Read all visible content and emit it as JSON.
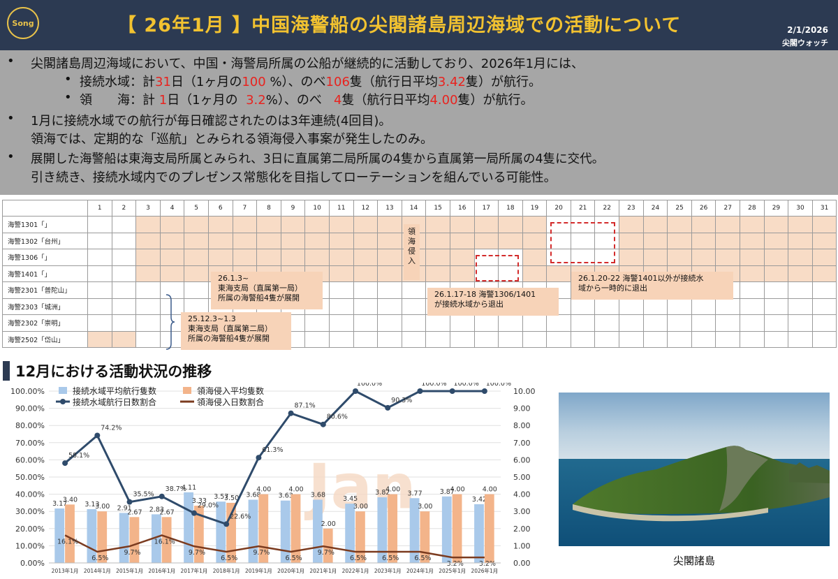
{
  "header": {
    "logo": "Song",
    "title": "【 26年1月 】中国海警船の尖閣諸島周辺海域での活動について",
    "date": "2/1/2026",
    "source": "尖閣ウォッチ"
  },
  "summary": {
    "b1": "尖閣諸島周辺海域において、中国・海警局所属の公船が継続的に活動しており、2026年1月には、",
    "s1": {
      "p1": "接続水域：計",
      "r1": "31",
      "p2": "日（1ヶ月の",
      "r2": "100 ",
      "p3": "%）、のべ",
      "r3": "106",
      "p4": "隻（航行日平均",
      "r4": "3.42",
      "p5": "隻）が航行。"
    },
    "s2": {
      "p1": "領　　海：計 ",
      "r1": "1",
      "p2": "日（1ヶ月の  ",
      "r2": "3.2",
      "p3": "%）、のべ   ",
      "r3": "4",
      "p4": "隻（航行日平均",
      "r4": "4.00",
      "p5": "隻）が航行。"
    },
    "b2": "1月に接続水域での航行が毎日確認されたのは3年連続(4回目)。",
    "b2b": "領海では、定期的な「巡航」とみられる領海侵入事案が発生したのみ。",
    "b3": "展開した海警船は東海支局所属とみられ、3日に直属第二局所属の4隻から直属第一局所属の4隻に交代。",
    "b3b": "引き続き、接続水域内でのプレゼンス常態化を目指してローテーションを組んでいる可能性。",
    "bullet": "•"
  },
  "timeline": {
    "days": [
      "1",
      "2",
      "3",
      "4",
      "5",
      "6",
      "7",
      "8",
      "9",
      "10",
      "11",
      "12",
      "13",
      "14",
      "15",
      "16",
      "17",
      "18",
      "19",
      "20",
      "21",
      "22",
      "23",
      "24",
      "25",
      "26",
      "27",
      "28",
      "29",
      "30",
      "31"
    ],
    "ships": [
      {
        "name": "海警1301「」",
        "from": 3,
        "to": 31,
        "off": [
          20,
          21,
          22
        ]
      },
      {
        "name": "海警1302「台州」",
        "from": 3,
        "to": 31,
        "off": [
          20,
          21,
          22
        ]
      },
      {
        "name": "海警1306「」",
        "from": 3,
        "to": 31,
        "off": [
          17,
          18,
          20,
          21,
          22
        ]
      },
      {
        "name": "海警1401「」",
        "from": 3,
        "to": 31,
        "off": [
          17,
          18
        ]
      },
      {
        "name": "海警2301「普陀山」",
        "from": 0,
        "to": 0,
        "off": []
      },
      {
        "name": "海警2303「城洲」",
        "from": 0,
        "to": 0,
        "off": []
      },
      {
        "name": "海警2302「崇明」",
        "from": 0,
        "to": 0,
        "off": []
      },
      {
        "name": "海警2502「岱山」",
        "from": 1,
        "to": 2,
        "off": []
      }
    ],
    "incursion": "領\n海\n侵\n入",
    "ann1": "26.1.3~\n東海支局（直属第一局）\n所属の海警船4隻が展開",
    "ann2": "25.12.3~1.3\n東海支局（直属第二局）\n所属の海警船4隻が展開",
    "ann3": "26.1.17-18 海警1306/1401\nが接続水域から退出",
    "ann4": "26.1.20-22 海警1401以外が接続水\n域から一時的に退出"
  },
  "chart_section_title": "12月における活動状況の推移",
  "chart_data": {
    "type": "bar",
    "categories": [
      "2013年1月",
      "2014年1月",
      "2015年1月",
      "2016年1月",
      "2017年1月",
      "2018年1月",
      "2019年1月",
      "2020年1月",
      "2021年1月",
      "2022年1月",
      "2023年1月",
      "2024年1月",
      "2025年1月",
      "2026年1月"
    ],
    "series": [
      {
        "name": "接続水域平均航行隻数",
        "kind": "bar",
        "axis": "right",
        "color": "#a9c9ea",
        "values": [
          3.17,
          3.13,
          2.91,
          2.83,
          4.11,
          3.57,
          3.68,
          3.63,
          3.68,
          3.45,
          3.82,
          3.77,
          3.87,
          3.42
        ],
        "labels": [
          "3.17",
          "3.13",
          "2.91",
          "2.83",
          "4.11",
          "3.57",
          "3.68",
          "3.63",
          "3.68",
          "3.45",
          "3.82",
          "3.77",
          "3.87",
          "3.42"
        ]
      },
      {
        "name": "領海侵入平均隻数",
        "kind": "bar",
        "axis": "right",
        "color": "#f3b48a",
        "values": [
          3.4,
          3.0,
          2.67,
          2.67,
          3.33,
          3.5,
          4.0,
          4.0,
          2.0,
          3.0,
          4.0,
          3.0,
          4.0,
          4.0
        ],
        "labels": [
          "3.40",
          "3.00",
          "2.67",
          "2.67",
          "3.33",
          "3.50",
          "4.00",
          "4.00",
          "2.00",
          "3.00",
          "4.00",
          "3.00",
          "4.00",
          "4.00"
        ]
      },
      {
        "name": "接続水域航行日数割合",
        "kind": "line",
        "axis": "left",
        "color": "#2f4b6b",
        "values": [
          58.1,
          74.2,
          35.5,
          38.7,
          29.0,
          22.6,
          61.3,
          87.1,
          80.6,
          100.0,
          90.3,
          100.0,
          100.0,
          100.0
        ],
        "labels": [
          "58.1%",
          "74.2%",
          "35.5%",
          "38.7%",
          "29.0%",
          "22.6%",
          "61.3%",
          "87.1%",
          "80.6%",
          "100.0%",
          "90.3%",
          "100.0%",
          "100.0%",
          "100.0%"
        ]
      },
      {
        "name": "領海侵入日数割合",
        "kind": "line",
        "axis": "left",
        "color": "#7b3b1f",
        "values": [
          16.1,
          6.5,
          9.7,
          16.1,
          9.7,
          6.5,
          9.7,
          6.5,
          9.7,
          6.5,
          6.5,
          6.5,
          3.2,
          3.2
        ],
        "labels": [
          "16.1%",
          "6.5%",
          "9.7%",
          "16.1%",
          "9.7%",
          "6.5%",
          "9.7%",
          "6.5%",
          "9.7%",
          "6.5%",
          "6.5%",
          "6.5%",
          "3.2%",
          "3.2%"
        ]
      }
    ],
    "ylim_left": [
      0,
      100
    ],
    "ylim_right": [
      0,
      10
    ],
    "left_ticks": [
      "0.00%",
      "10.00%",
      "20.00%",
      "30.00%",
      "40.00%",
      "50.00%",
      "60.00%",
      "70.00%",
      "80.00%",
      "90.00%",
      "100.00%"
    ],
    "right_ticks": [
      "0.00",
      "1.00",
      "2.00",
      "3.00",
      "4.00",
      "5.00",
      "6.00",
      "7.00",
      "8.00",
      "9.00",
      "10.00"
    ],
    "watermark": "Jan",
    "legend_position": "top-left"
  },
  "photo_caption": "尖閣諸島",
  "colors": {
    "header": "#2c3a52",
    "accent": "#f2c230",
    "red": "#e8231f",
    "tl_on": "#f8dcc6"
  }
}
